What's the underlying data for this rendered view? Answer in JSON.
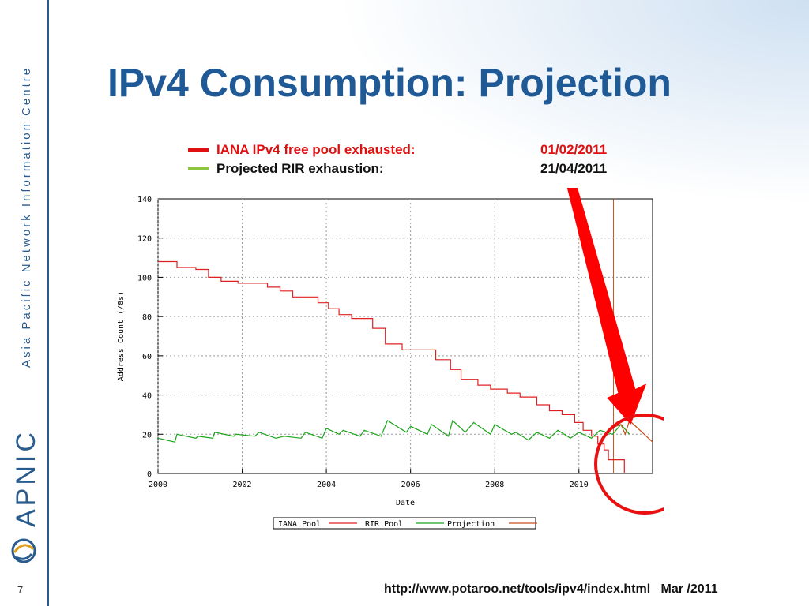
{
  "slide": {
    "title": "IPv4 Consumption: Projection",
    "page_number": "7",
    "sidebar_text": "Asia Pacific Network Information Centre",
    "logo_text": "APNIC",
    "footer_url": "http://www.potaroo.net/tools/ipv4/index.html",
    "footer_date": "Mar /2011"
  },
  "legend_top": [
    {
      "label": "IANA IPv4 free pool exhausted:",
      "date": "01/02/2011",
      "color": "#e01010"
    },
    {
      "label": "Projected RIR exhaustion:",
      "date": "21/04/2011",
      "color": "#8cc63f"
    }
  ],
  "colors": {
    "iana": "#e02020",
    "rir": "#1aa31a",
    "projection": "#c8501e",
    "arrow": "#ff0000",
    "circle": "#e81010",
    "title": "#1f5a96"
  },
  "chart_data": {
    "type": "line",
    "title": "",
    "xlabel": "Date",
    "ylabel": "Address Count (/8s)",
    "xlim": [
      2000,
      2011.75
    ],
    "ylim": [
      0,
      140
    ],
    "x_ticks": [
      2000,
      2002,
      2004,
      2006,
      2008,
      2010
    ],
    "y_ticks": [
      0,
      20,
      40,
      60,
      80,
      100,
      120,
      140
    ],
    "grid": true,
    "legend_position": "bottom",
    "series": [
      {
        "name": "IANA Pool",
        "style": "step",
        "points": [
          [
            2000,
            108
          ],
          [
            2000.45,
            108
          ],
          [
            2000.45,
            105
          ],
          [
            2000.9,
            105
          ],
          [
            2000.9,
            104
          ],
          [
            2001.2,
            104
          ],
          [
            2001.2,
            100
          ],
          [
            2001.5,
            100
          ],
          [
            2001.5,
            98
          ],
          [
            2001.9,
            98
          ],
          [
            2001.9,
            97
          ],
          [
            2002.6,
            97
          ],
          [
            2002.6,
            95
          ],
          [
            2002.9,
            95
          ],
          [
            2002.9,
            93
          ],
          [
            2003.2,
            93
          ],
          [
            2003.2,
            90
          ],
          [
            2003.8,
            90
          ],
          [
            2003.8,
            87
          ],
          [
            2004.05,
            87
          ],
          [
            2004.05,
            84
          ],
          [
            2004.3,
            84
          ],
          [
            2004.3,
            81
          ],
          [
            2004.6,
            81
          ],
          [
            2004.6,
            79
          ],
          [
            2005.1,
            79
          ],
          [
            2005.1,
            74
          ],
          [
            2005.4,
            74
          ],
          [
            2005.4,
            66
          ],
          [
            2005.8,
            66
          ],
          [
            2005.8,
            63
          ],
          [
            2006.6,
            63
          ],
          [
            2006.6,
            58
          ],
          [
            2006.95,
            58
          ],
          [
            2006.95,
            53
          ],
          [
            2007.2,
            53
          ],
          [
            2007.2,
            48
          ],
          [
            2007.6,
            48
          ],
          [
            2007.6,
            45
          ],
          [
            2007.9,
            45
          ],
          [
            2007.9,
            43
          ],
          [
            2008.3,
            43
          ],
          [
            2008.3,
            41
          ],
          [
            2008.6,
            41
          ],
          [
            2008.6,
            39
          ],
          [
            2009.0,
            39
          ],
          [
            2009.0,
            35
          ],
          [
            2009.3,
            35
          ],
          [
            2009.3,
            32
          ],
          [
            2009.6,
            32
          ],
          [
            2009.6,
            30
          ],
          [
            2009.9,
            30
          ],
          [
            2009.9,
            26
          ],
          [
            2010.1,
            26
          ],
          [
            2010.1,
            22
          ],
          [
            2010.3,
            22
          ],
          [
            2010.3,
            19
          ],
          [
            2010.45,
            19
          ],
          [
            2010.45,
            15
          ],
          [
            2010.6,
            15
          ],
          [
            2010.6,
            12
          ],
          [
            2010.7,
            12
          ],
          [
            2010.7,
            7
          ],
          [
            2011.08,
            7
          ],
          [
            2011.08,
            0
          ]
        ]
      },
      {
        "name": "RIR Pool",
        "style": "line",
        "points": [
          [
            2000,
            18
          ],
          [
            2000.4,
            16
          ],
          [
            2000.45,
            20
          ],
          [
            2000.9,
            18
          ],
          [
            2000.95,
            19
          ],
          [
            2001.3,
            18
          ],
          [
            2001.35,
            21
          ],
          [
            2001.8,
            19
          ],
          [
            2001.85,
            20
          ],
          [
            2002.3,
            19
          ],
          [
            2002.4,
            21
          ],
          [
            2002.8,
            18
          ],
          [
            2003.0,
            19
          ],
          [
            2003.4,
            18
          ],
          [
            2003.5,
            21
          ],
          [
            2003.9,
            18
          ],
          [
            2004.0,
            23
          ],
          [
            2004.3,
            20
          ],
          [
            2004.4,
            22
          ],
          [
            2004.8,
            19
          ],
          [
            2004.9,
            22
          ],
          [
            2005.3,
            19
          ],
          [
            2005.45,
            27
          ],
          [
            2005.9,
            21
          ],
          [
            2006.0,
            24
          ],
          [
            2006.4,
            20
          ],
          [
            2006.5,
            25
          ],
          [
            2006.9,
            19
          ],
          [
            2007.0,
            27
          ],
          [
            2007.3,
            21
          ],
          [
            2007.5,
            26
          ],
          [
            2007.9,
            20
          ],
          [
            2008.0,
            25
          ],
          [
            2008.4,
            20
          ],
          [
            2008.5,
            21
          ],
          [
            2008.8,
            17
          ],
          [
            2009.0,
            21
          ],
          [
            2009.3,
            18
          ],
          [
            2009.5,
            22
          ],
          [
            2009.8,
            18
          ],
          [
            2010.0,
            21
          ],
          [
            2010.3,
            18
          ],
          [
            2010.5,
            22
          ],
          [
            2010.8,
            20
          ],
          [
            2011.0,
            25
          ],
          [
            2011.2,
            20
          ]
        ]
      },
      {
        "name": "Projection",
        "style": "line",
        "points": [
          [
            2010.75,
            23
          ],
          [
            2011.0,
            25
          ],
          [
            2011.1,
            20
          ],
          [
            2011.2,
            27
          ],
          [
            2011.75,
            16
          ]
        ]
      }
    ],
    "annotations": {
      "iana_exhaustion_x": 2011.08,
      "rir_exhaustion_x": 2011.3
    }
  }
}
